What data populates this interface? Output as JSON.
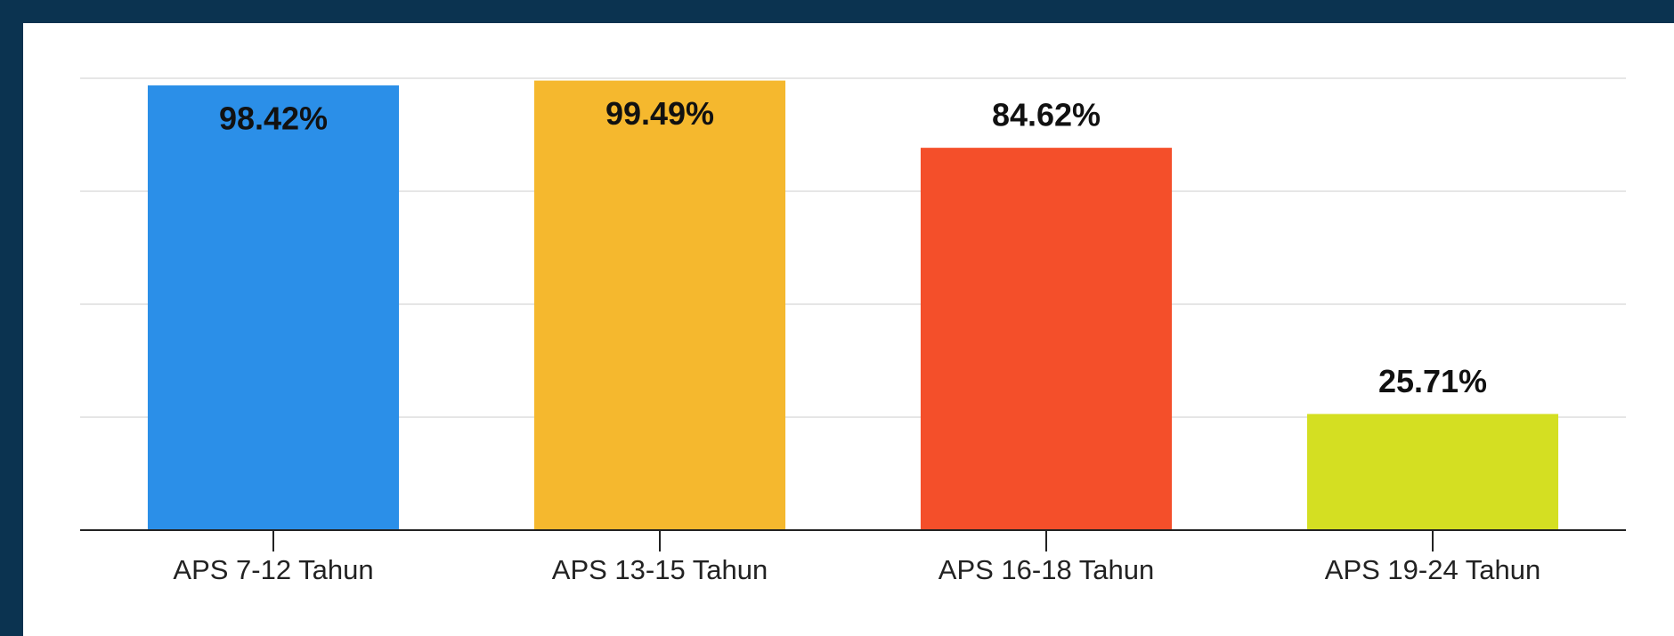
{
  "chart_data": {
    "type": "bar",
    "categories": [
      "APS 7-12 Tahun",
      "APS 13-15 Tahun",
      "APS 16-18 Tahun",
      "APS 19-24 Tahun"
    ],
    "values": [
      98.42,
      99.49,
      84.62,
      25.71
    ],
    "value_labels": [
      "98.42%",
      "99.49%",
      "84.62%",
      "25.71%"
    ],
    "colors": [
      "#2b8fe8",
      "#f5b82e",
      "#f44f2a",
      "#d4df22"
    ],
    "ylim": [
      0,
      100
    ],
    "yticks": [
      0,
      25,
      50,
      75,
      100
    ],
    "grid": true
  }
}
